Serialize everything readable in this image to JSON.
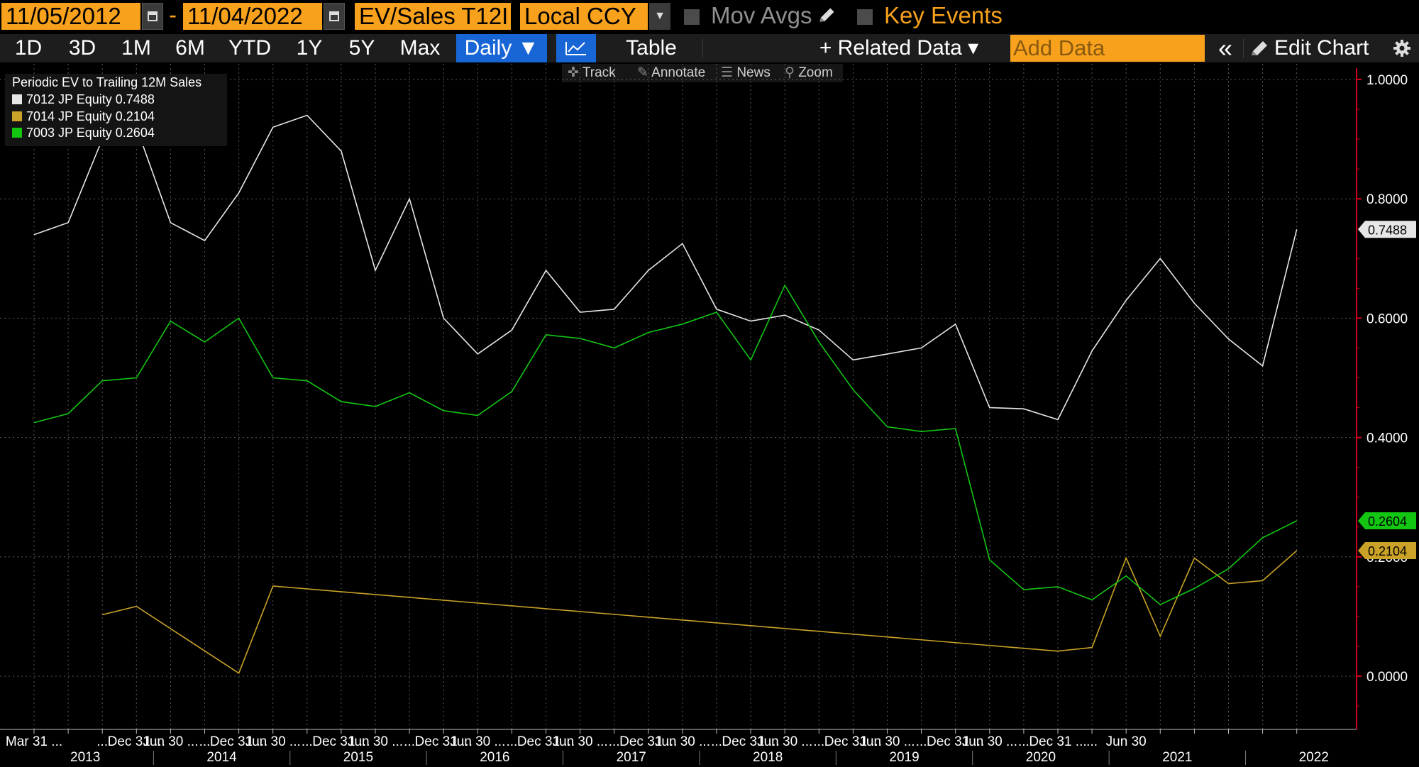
{
  "toolbar": {
    "start_date": "11/05/2012",
    "end_date": "11/04/2022",
    "date_separator": "-",
    "field_label": "EV/Sales T12I",
    "currency_label": "Local CCY",
    "mov_avgs_label": "Mov Avgs",
    "key_events_label": "Key Events",
    "range_buttons": [
      "1D",
      "3D",
      "1M",
      "6M",
      "YTD",
      "1Y",
      "5Y",
      "Max"
    ],
    "frequency_label": "Daily ▼",
    "table_label": "Table",
    "related_data_label": "+ Related Data ▾",
    "add_data_placeholder": "Add Data",
    "collapse_label": "«",
    "edit_chart_label": "Edit Chart",
    "tools": [
      "Track",
      "Annotate",
      "News",
      "Zoom"
    ]
  },
  "colors": {
    "accent": "#f7a11c",
    "selected": "#1866d6",
    "axis": "#d0021b",
    "series_white": "#e6e6e6",
    "series_gold": "#c9a227",
    "series_green": "#12c612"
  },
  "chart_data": {
    "type": "line",
    "title": "Periodic EV to Trailing 12M Sales",
    "ylim": [
      -0.09,
      1.02
    ],
    "yticks": [
      0.0,
      0.2,
      0.4,
      0.6,
      0.8,
      1.0
    ],
    "ytick_labels": [
      "0.0000",
      "0.2000",
      "0.4000",
      "0.6000",
      "0.8000",
      "1.0000"
    ],
    "x_tick_labels": [
      "Mar 31 ...",
      "...",
      "Dec 31 ...",
      "Jun 30 ...",
      "...",
      "Dec 31 ...",
      "Jun 30 ...",
      "...",
      "Dec 31 ...",
      "Jun 30 ...",
      "...",
      "Dec 31 ...",
      "Jun 30 ...",
      "...",
      "Dec 31 ...",
      "Jun 30 ...",
      "...",
      "Dec 31 ...",
      "Jun 30 ...",
      "...",
      "Dec 31 ...",
      "Jun 30 ...",
      "...",
      "Dec 31 ...",
      "Jun 30 ...",
      "...",
      "Dec 31 ...",
      "Jun 30 ...",
      "...",
      "Dec 31 ...",
      "...",
      "Jun 30"
    ],
    "year_labels": [
      "2013",
      "2014",
      "2015",
      "2016",
      "2017",
      "2018",
      "2019",
      "2020",
      "2021",
      "2022"
    ],
    "x": [
      "2013-03-31",
      "2013-06-30",
      "2013-09-30",
      "2013-12-31",
      "2014-03-31",
      "2014-06-30",
      "2014-09-30",
      "2014-12-31",
      "2015-03-31",
      "2015-06-30",
      "2015-09-30",
      "2015-12-31",
      "2016-03-31",
      "2016-06-30",
      "2016-09-30",
      "2016-12-31",
      "2017-03-31",
      "2017-06-30",
      "2017-09-30",
      "2017-12-31",
      "2018-03-31",
      "2018-06-30",
      "2018-09-30",
      "2018-12-31",
      "2019-03-31",
      "2019-06-30",
      "2019-09-30",
      "2019-12-31",
      "2020-03-31",
      "2020-06-30",
      "2020-09-30",
      "2020-12-31",
      "2021-03-31",
      "2021-06-30",
      "2021-09-30",
      "2021-12-31",
      "2022-03-31",
      "2022-06-30"
    ],
    "series": [
      {
        "name": "7012 JP Equity",
        "last_value": "0.7488",
        "color": "#e6e6e6",
        "values": [
          0.74,
          0.76,
          0.9,
          0.92,
          0.76,
          0.73,
          0.81,
          0.92,
          0.94,
          0.88,
          0.68,
          0.8,
          0.6,
          0.54,
          0.58,
          0.68,
          0.61,
          0.615,
          0.68,
          0.725,
          0.615,
          0.595,
          0.605,
          0.58,
          0.53,
          0.54,
          0.55,
          0.59,
          0.45,
          0.448,
          0.43,
          0.545,
          0.63,
          0.7,
          0.625,
          0.565,
          0.52,
          0.7488
        ]
      },
      {
        "name": "7014 JP Equity",
        "last_value": "0.2104",
        "color": "#c9a227",
        "values": [
          null,
          null,
          0.103,
          0.117,
          null,
          null,
          0.005,
          0.151,
          null,
          null,
          null,
          null,
          null,
          null,
          null,
          null,
          null,
          null,
          null,
          null,
          null,
          null,
          null,
          null,
          null,
          null,
          null,
          null,
          null,
          null,
          0.042,
          0.048,
          0.198,
          0.067,
          0.198,
          0.155,
          0.16,
          0.2104
        ]
      },
      {
        "name": "7003 JP Equity",
        "last_value": "0.2604",
        "color": "#12c612",
        "values": [
          0.425,
          0.44,
          0.495,
          0.5,
          0.595,
          0.56,
          0.6,
          0.5,
          0.495,
          0.46,
          0.452,
          0.475,
          0.445,
          0.437,
          0.477,
          0.572,
          0.566,
          0.55,
          0.576,
          0.59,
          0.61,
          0.53,
          0.655,
          0.56,
          0.48,
          0.418,
          0.41,
          0.415,
          0.195,
          0.145,
          0.15,
          0.128,
          0.168,
          0.12,
          0.147,
          0.18,
          0.232,
          0.2604
        ]
      }
    ],
    "grid": true,
    "legend_position": "top-left"
  }
}
